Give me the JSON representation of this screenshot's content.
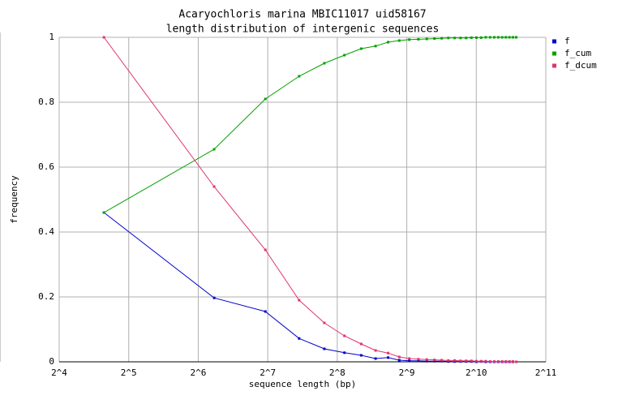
{
  "chart_data": {
    "type": "line",
    "title": "Acaryochloris marina MBIC11017 uid58167",
    "subtitle": "length distribution of intergenic sequences",
    "x_label": "sequence length (bp)",
    "y_label": "frequency",
    "x_scale": "log2",
    "grid": true,
    "legend": "top-right",
    "x": [
      25,
      75,
      125,
      175,
      225,
      275,
      325,
      375,
      425,
      475,
      525,
      575,
      625,
      675,
      725,
      775,
      825,
      875,
      925,
      975,
      1025,
      1075,
      1125,
      1175,
      1225,
      1275,
      1325,
      1375,
      1425,
      1475,
      1525
    ],
    "series": [
      {
        "name": "f",
        "color": "#0000cc",
        "values": [
          0.46,
          0.197,
          0.155,
          0.072,
          0.04,
          0.028,
          0.02,
          0.01,
          0.013,
          0.005,
          0.003,
          0.003,
          0.002,
          0.002,
          0.002,
          0.001,
          0.001,
          0.001,
          0.001,
          0.001,
          0,
          0.001,
          0,
          0,
          0,
          0,
          0,
          0,
          0,
          0,
          0
        ]
      },
      {
        "name": "f_cum",
        "color": "#00a000",
        "values": [
          0.46,
          0.655,
          0.81,
          0.88,
          0.92,
          0.945,
          0.965,
          0.973,
          0.985,
          0.99,
          0.993,
          0.994,
          0.995,
          0.996,
          0.997,
          0.998,
          0.998,
          0.998,
          0.998,
          0.999,
          0.999,
          0.999,
          1,
          1,
          1,
          1,
          1,
          1,
          1,
          1,
          1
        ]
      },
      {
        "name": "f_dcum",
        "color": "#e0336a",
        "values": [
          1,
          0.54,
          0.345,
          0.19,
          0.12,
          0.08,
          0.055,
          0.035,
          0.027,
          0.015,
          0.01,
          0.008,
          0.007,
          0.006,
          0.005,
          0.004,
          0.004,
          0.003,
          0.003,
          0.003,
          0.002,
          0.002,
          0.002,
          0.001,
          0.001,
          0.001,
          0.001,
          0.001,
          0.001,
          0.001,
          0
        ]
      }
    ],
    "xlim": [
      16,
      2048
    ],
    "xticks": [
      {
        "value": 16,
        "label": "2^4"
      },
      {
        "value": 32,
        "label": "2^5"
      },
      {
        "value": 64,
        "label": "2^6"
      },
      {
        "value": 128,
        "label": "2^7"
      },
      {
        "value": 256,
        "label": "2^8"
      },
      {
        "value": 512,
        "label": "2^9"
      },
      {
        "value": 1024,
        "label": "2^10"
      },
      {
        "value": 2048,
        "label": "2^11"
      }
    ],
    "ylim": [
      0,
      1
    ],
    "yticks": [
      0,
      0.2,
      0.4,
      0.6,
      0.8,
      1
    ]
  }
}
